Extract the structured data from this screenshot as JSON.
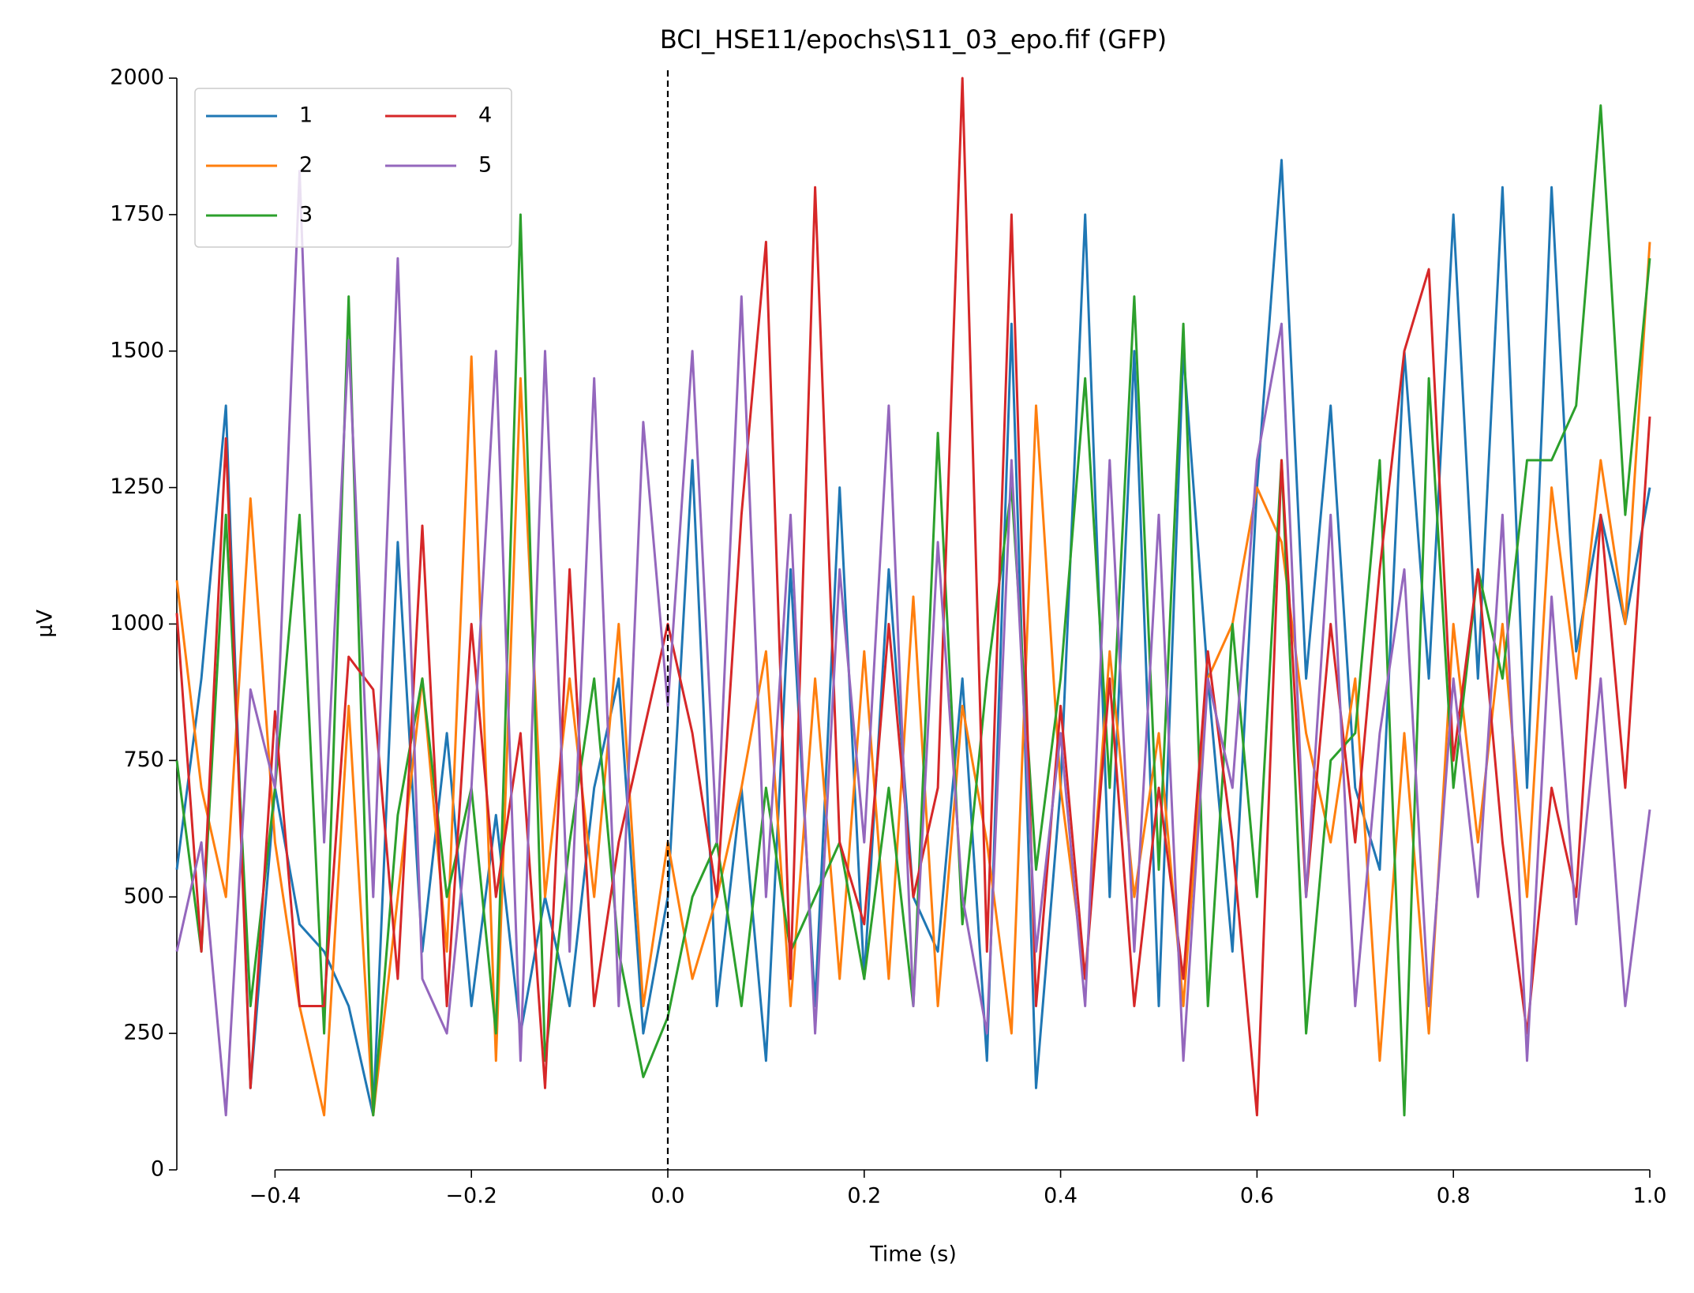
{
  "chart_data": {
    "type": "line",
    "title": "BCI_HSE11/epochs\\S11_03_epo.fif (GFP)",
    "xlabel": "Time (s)",
    "ylabel": "µV",
    "x": [
      -0.5,
      -0.475,
      -0.45,
      -0.425,
      -0.4,
      -0.375,
      -0.35,
      -0.325,
      -0.3,
      -0.275,
      -0.25,
      -0.225,
      -0.2,
      -0.175,
      -0.15,
      -0.125,
      -0.1,
      -0.075,
      -0.05,
      -0.025,
      0,
      0.025,
      0.05,
      0.075,
      0.1,
      0.125,
      0.15,
      0.175,
      0.2,
      0.225,
      0.25,
      0.275,
      0.3,
      0.325,
      0.35,
      0.375,
      0.4,
      0.425,
      0.45,
      0.475,
      0.5,
      0.525,
      0.55,
      0.575,
      0.6,
      0.625,
      0.65,
      0.675,
      0.7,
      0.725,
      0.75,
      0.775,
      0.8,
      0.825,
      0.85,
      0.875,
      0.9,
      0.925,
      0.95,
      0.975,
      1.0
    ],
    "series": [
      {
        "name": "1",
        "color": "#1f77b4",
        "values": [
          550,
          900,
          1400,
          150,
          700,
          450,
          400,
          300,
          100,
          1150,
          400,
          800,
          300,
          650,
          250,
          500,
          300,
          700,
          900,
          250,
          500,
          1300,
          300,
          700,
          200,
          1100,
          300,
          1250,
          350,
          1100,
          500,
          400,
          900,
          200,
          1550,
          150,
          700,
          1750,
          500,
          1500,
          300,
          1500,
          900,
          400,
          1250,
          1850,
          900,
          1400,
          700,
          550,
          1500,
          900,
          1750,
          900,
          1800,
          700,
          1800,
          950,
          1200,
          1000,
          1250
        ]
      },
      {
        "name": "2",
        "color": "#ff7f0e",
        "values": [
          1080,
          700,
          500,
          1230,
          600,
          300,
          100,
          850,
          100,
          500,
          900,
          400,
          1490,
          200,
          1450,
          500,
          900,
          500,
          1000,
          300,
          600,
          350,
          500,
          700,
          950,
          300,
          900,
          350,
          950,
          350,
          1050,
          300,
          850,
          600,
          250,
          1400,
          700,
          350,
          950,
          500,
          800,
          300,
          900,
          1000,
          1250,
          1150,
          800,
          600,
          900,
          200,
          800,
          250,
          1000,
          600,
          1000,
          500,
          1250,
          900,
          1300,
          1000,
          1700
        ]
      },
      {
        "name": "3",
        "color": "#2ca02c",
        "values": [
          750,
          400,
          1200,
          300,
          700,
          1200,
          250,
          1600,
          100,
          650,
          900,
          500,
          700,
          250,
          1750,
          200,
          600,
          900,
          400,
          170,
          280,
          500,
          600,
          300,
          700,
          400,
          500,
          600,
          350,
          700,
          300,
          1350,
          450,
          900,
          1250,
          550,
          900,
          1450,
          700,
          1600,
          550,
          1550,
          300,
          1000,
          500,
          1300,
          250,
          750,
          800,
          1300,
          100,
          1450,
          700,
          1100,
          900,
          1300,
          1300,
          1400,
          1950,
          1200,
          1670
        ]
      },
      {
        "name": "4",
        "color": "#d62728",
        "values": [
          1020,
          400,
          1340,
          150,
          840,
          300,
          300,
          940,
          880,
          350,
          1180,
          300,
          1000,
          500,
          800,
          150,
          1100,
          300,
          600,
          800,
          1000,
          800,
          500,
          1200,
          1700,
          350,
          1800,
          600,
          450,
          1000,
          500,
          700,
          2000,
          400,
          1750,
          300,
          850,
          350,
          900,
          300,
          700,
          350,
          950,
          600,
          100,
          1300,
          500,
          1000,
          600,
          1100,
          1500,
          1650,
          750,
          1100,
          600,
          250,
          700,
          500,
          1200,
          700,
          1380
        ]
      },
      {
        "name": "5",
        "color": "#9467bd",
        "values": [
          400,
          600,
          100,
          880,
          700,
          1830,
          600,
          1520,
          500,
          1670,
          350,
          250,
          700,
          1500,
          200,
          1500,
          400,
          1450,
          300,
          1370,
          850,
          1500,
          600,
          1600,
          500,
          1200,
          250,
          1100,
          600,
          1400,
          300,
          1150,
          500,
          250,
          1300,
          400,
          800,
          300,
          1300,
          400,
          1200,
          200,
          900,
          700,
          1300,
          1550,
          500,
          1200,
          300,
          800,
          1100,
          300,
          900,
          500,
          1200,
          200,
          1050,
          450,
          900,
          300,
          660
        ]
      }
    ],
    "xlim": [
      -0.5,
      1.0
    ],
    "xticks": [
      {
        "value": -0.4,
        "label": "−0.4"
      },
      {
        "value": -0.2,
        "label": "−0.2"
      },
      {
        "value": 0,
        "label": "0.0"
      },
      0.2,
      0.4,
      0.6,
      0.8,
      {
        "value": 1,
        "label": "1.0"
      }
    ],
    "ylim": [
      0,
      2000
    ],
    "yticks": [
      0,
      250,
      500,
      750,
      1000,
      1250,
      1500,
      1750,
      2000
    ],
    "vlines": [
      0
    ],
    "legend": "upper left",
    "legend_columns": 2,
    "grid": false
  }
}
